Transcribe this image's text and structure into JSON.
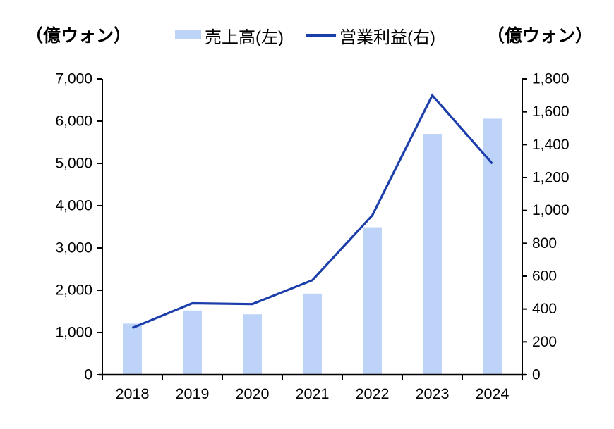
{
  "header": {
    "left_axis_unit": "（億ウォン）",
    "right_axis_unit": "（億ウォン）"
  },
  "legend": [
    {
      "label": "売上高(左)",
      "type": "bar",
      "color": "#BDD3F8"
    },
    {
      "label": "営業利益(右)",
      "type": "line",
      "color": "#1C3EAB"
    }
  ],
  "chart_data": {
    "type": "combo-bar-line",
    "title": "",
    "categories": [
      "2018",
      "2019",
      "2020",
      "2021",
      "2022",
      "2023",
      "2024"
    ],
    "series": [
      {
        "name": "売上高(左)",
        "type": "bar",
        "axis": "left",
        "values": [
          1210,
          1520,
          1430,
          1920,
          3490,
          5700,
          6060
        ]
      },
      {
        "name": "営業利益(右)",
        "type": "line",
        "axis": "right",
        "values": [
          285,
          435,
          430,
          575,
          970,
          1700,
          1285
        ]
      }
    ],
    "left_axis": {
      "label": "（億ウォン）",
      "min": 0,
      "max": 7000,
      "step": 1000,
      "tick_labels": [
        "0",
        "1,000",
        "2,000",
        "3,000",
        "4,000",
        "5,000",
        "6,000",
        "7,000"
      ]
    },
    "right_axis": {
      "label": "（億ウォン）",
      "min": 0,
      "max": 1800,
      "step": 200,
      "tick_labels": [
        "0",
        "200",
        "400",
        "600",
        "800",
        "1,000",
        "1,200",
        "1,400",
        "1,600",
        "1,800"
      ]
    },
    "grid": false,
    "legend_position": "top"
  },
  "colors": {
    "bar": "#BDD3F8",
    "line": "#1C3EAB",
    "axis": "#000000",
    "text": "#000000",
    "background": "#FFFFFF"
  }
}
